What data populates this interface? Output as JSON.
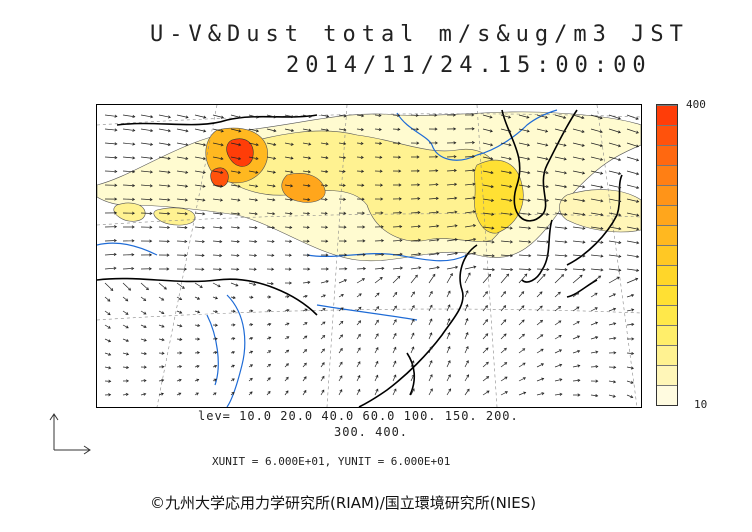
{
  "title": {
    "line1": "U-V&Dust total m/s&ug/m3 JST",
    "line2": "2014/11/24.15:00:00"
  },
  "colorbar": {
    "max_label": "400",
    "min_label": "10",
    "colors": [
      "#fffbe0",
      "#fff6b8",
      "#fff291",
      "#ffee6a",
      "#ffe84a",
      "#ffe033",
      "#ffd629",
      "#ffc824",
      "#ffb820",
      "#ffa61c",
      "#ff9418",
      "#ff7f14",
      "#ff6810",
      "#ff520c",
      "#ff3d08"
    ]
  },
  "levels": {
    "line1": "lev= 10.0 20.0 40.0 60.0 100. 150. 200.",
    "line2": "300. 400."
  },
  "units": "XUNIT = 6.000E+01, YUNIT = 6.000E+01",
  "credit": "©九州大学応用力学研究所(RIAM)/国立環境研究所(NIES)",
  "map": {
    "coastline_color": "#000000",
    "river_color": "#1e6bd6",
    "dust_low_color": "#fffbd0",
    "dust_mid_color": "#ffec70",
    "dust_high_color": "#ff9a20",
    "dust_peak_color": "#ff3d08"
  }
}
